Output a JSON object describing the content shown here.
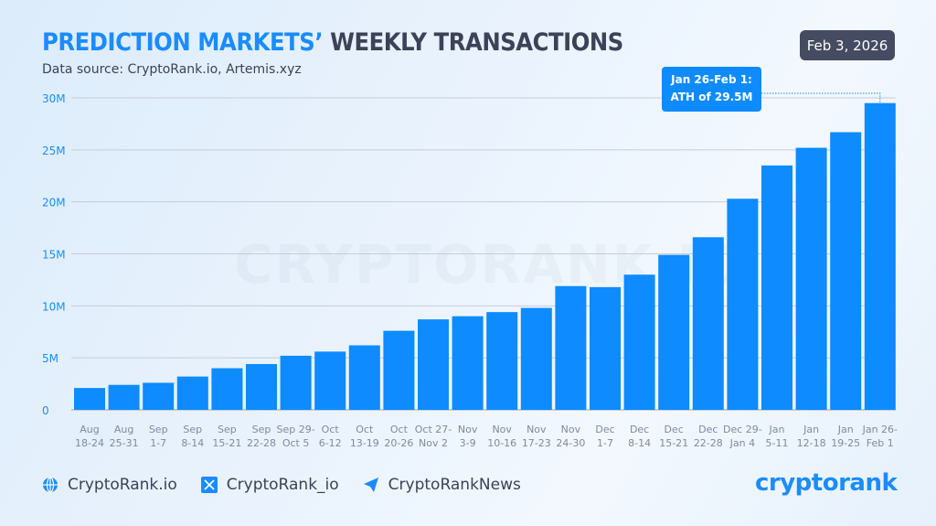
{
  "header": {
    "title_part1": "PREDICTION MARKETS’",
    "title_part2": "WEEKLY TRANSACTIONS",
    "subtitle": "Data source: CryptoRank.io, Artemis.xyz",
    "date": "Feb 3, 2026"
  },
  "watermark": "CRYPTORANK.IO",
  "annotation": {
    "line1": "Jan 26-Feb 1:",
    "line2": "ATH of 29.5M"
  },
  "footer": {
    "website": "CryptoRank.io",
    "x_handle": "CryptoRank_io",
    "telegram": "CryptoRankNews",
    "logo": "cryptorank"
  },
  "colors": {
    "bar": "#0d8bff",
    "accent": "#1a8cff",
    "dark": "#3c4257"
  },
  "chart_data": {
    "type": "bar",
    "title": "PREDICTION MARKETS’ WEEKLY TRANSACTIONS",
    "categories": [
      [
        "Aug",
        "18-24"
      ],
      [
        "Aug",
        "25-31"
      ],
      [
        "Sep",
        "1-7"
      ],
      [
        "Sep",
        "8-14"
      ],
      [
        "Sep",
        "15-21"
      ],
      [
        "Sep",
        "22-28"
      ],
      [
        "Sep 29-",
        "Oct 5"
      ],
      [
        "Oct",
        "6-12"
      ],
      [
        "Oct",
        "13-19"
      ],
      [
        "Oct",
        "20-26"
      ],
      [
        "Oct 27-",
        "Nov 2"
      ],
      [
        "Nov",
        "3-9"
      ],
      [
        "Nov",
        "10-16"
      ],
      [
        "Nov",
        "17-23"
      ],
      [
        "Nov",
        "24-30"
      ],
      [
        "Dec",
        "1-7"
      ],
      [
        "Dec",
        "8-14"
      ],
      [
        "Dec",
        "15-21"
      ],
      [
        "Dec",
        "22-28"
      ],
      [
        "Dec 29-",
        "Jan 4"
      ],
      [
        "Jan",
        "5-11"
      ],
      [
        "Jan",
        "12-18"
      ],
      [
        "Jan",
        "19-25"
      ],
      [
        "Jan 26-",
        "Feb 1"
      ]
    ],
    "values": [
      2.1,
      2.4,
      2.6,
      3.2,
      4.0,
      4.4,
      5.2,
      5.6,
      6.2,
      7.6,
      8.7,
      9.0,
      9.4,
      9.8,
      11.9,
      11.8,
      13.0,
      14.9,
      16.6,
      20.3,
      23.5,
      25.2,
      26.7,
      29.5
    ],
    "unit": "M",
    "ylim": [
      0,
      30
    ],
    "yticks": [
      {
        "v": 0,
        "label": "0"
      },
      {
        "v": 5,
        "label": "5M"
      },
      {
        "v": 10,
        "label": "10M"
      },
      {
        "v": 15,
        "label": "15M"
      },
      {
        "v": 20,
        "label": "20M"
      },
      {
        "v": 25,
        "label": "25M"
      },
      {
        "v": 30,
        "label": "30M"
      }
    ],
    "grid": true,
    "legend": "none"
  }
}
